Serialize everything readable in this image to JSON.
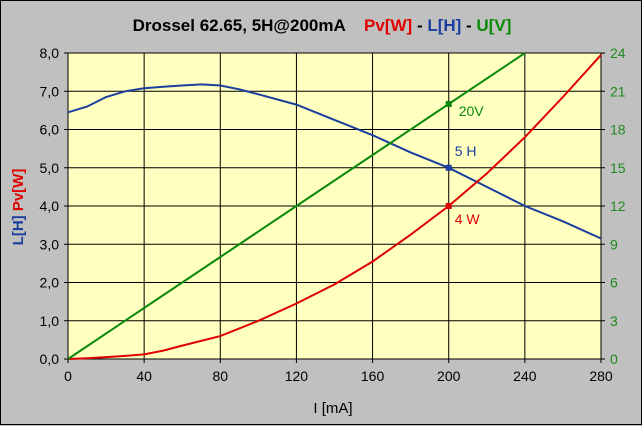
{
  "chart_data": {
    "type": "line",
    "title": "Drossel 62.65, 5H@200mA",
    "title_parts": [
      {
        "text": "Pv[W]",
        "color": "#e00000"
      },
      {
        "text": " - ",
        "color": "#000000"
      },
      {
        "text": "L[H]",
        "color": "#1a3f9e"
      },
      {
        "text": " - ",
        "color": "#000000"
      },
      {
        "text": "U[V]",
        "color": "#0a8a0a"
      }
    ],
    "xlabel": "I [mA]",
    "ylabel_left": [
      {
        "text": "L[H]",
        "color": "#1a3f9e"
      },
      {
        "text": "Pv[W]",
        "color": "#e00000"
      }
    ],
    "xlim": [
      0,
      280
    ],
    "ylim_left": [
      0,
      8
    ],
    "ylim_right": [
      0,
      24
    ],
    "x_ticks": [
      "0",
      "40",
      "80",
      "120",
      "160",
      "200",
      "240",
      "280"
    ],
    "y_left_ticks": [
      "0,0",
      "1,0",
      "2,0",
      "3,0",
      "4,0",
      "5,0",
      "6,0",
      "7,0",
      "8,0"
    ],
    "y_right_ticks": [
      "0",
      "3",
      "6",
      "9",
      "12",
      "15",
      "18",
      "21",
      "24"
    ],
    "grid": true,
    "plot_background": "#ffffc0",
    "series": [
      {
        "name": "L[H]",
        "axis": "left",
        "color": "#1a3f9e",
        "x": [
          0,
          10,
          20,
          30,
          40,
          50,
          60,
          70,
          80,
          90,
          100,
          120,
          140,
          160,
          180,
          200,
          220,
          240,
          260,
          280
        ],
        "y": [
          6.45,
          6.6,
          6.85,
          7.0,
          7.08,
          7.12,
          7.15,
          7.18,
          7.15,
          7.05,
          6.92,
          6.65,
          6.25,
          5.85,
          5.4,
          5.0,
          4.5,
          4.0,
          3.6,
          3.15
        ]
      },
      {
        "name": "Pv[W]",
        "axis": "left",
        "color": "#e00000",
        "x": [
          0,
          10,
          20,
          30,
          40,
          50,
          60,
          80,
          100,
          120,
          140,
          160,
          180,
          200,
          220,
          240,
          260,
          280
        ],
        "y": [
          0.0,
          0.02,
          0.05,
          0.08,
          0.12,
          0.22,
          0.35,
          0.6,
          1.0,
          1.45,
          1.95,
          2.55,
          3.25,
          4.0,
          4.85,
          5.8,
          6.85,
          7.95
        ]
      },
      {
        "name": "U[V]",
        "axis": "right",
        "color": "#0a8a0a",
        "x": [
          0,
          40,
          80,
          120,
          160,
          200,
          240
        ],
        "y": [
          0,
          4.0,
          8.0,
          12.0,
          16.0,
          20.0,
          24.0
        ]
      }
    ],
    "annotations": [
      {
        "text": "20V",
        "series": "U[V]",
        "x": 200,
        "y": 20,
        "color": "#0a8a0a"
      },
      {
        "text": "5 H",
        "series": "L[H]",
        "x": 200,
        "y": 5.0,
        "color": "#1a3f9e"
      },
      {
        "text": "4 W",
        "series": "Pv[W]",
        "x": 200,
        "y": 4.0,
        "color": "#e00000"
      }
    ]
  }
}
